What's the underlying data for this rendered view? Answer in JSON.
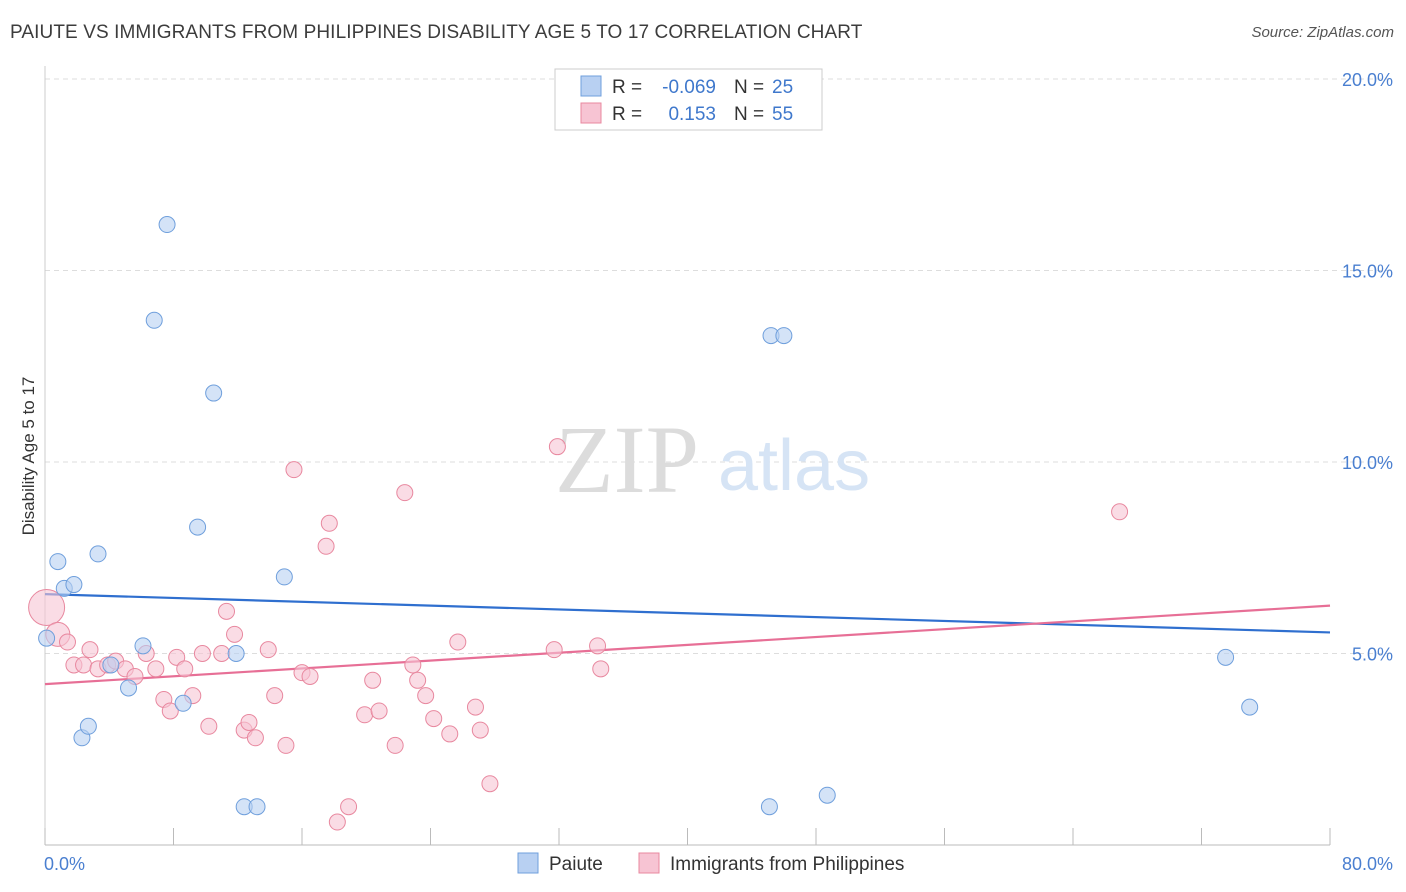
{
  "title": "PAIUTE VS IMMIGRANTS FROM PHILIPPINES DISABILITY AGE 5 TO 17 CORRELATION CHART",
  "source": "Source: ZipAtlas.com",
  "watermark": {
    "zip": "ZIP",
    "atlas": "atlas"
  },
  "legend_box": {
    "rows": [
      {
        "r_label": "R =",
        "r_value": "-0.069",
        "n_label": "N =",
        "n_value": "25"
      },
      {
        "r_label": "R =",
        "r_value": "0.153",
        "n_label": "N =",
        "n_value": "55"
      }
    ]
  },
  "colors": {
    "paiute_fill": "#b8d0f2",
    "paiute_stroke": "#6f9fdc",
    "paiute_line": "#2f6fcf",
    "phil_fill": "#f7c4d3",
    "phil_stroke": "#e8889f",
    "phil_line": "#e76f96",
    "tick": "#4a7fd0",
    "grid": "#dddddd"
  },
  "chart_data": {
    "type": "scatter",
    "title": "PAIUTE VS IMMIGRANTS FROM PHILIPPINES DISABILITY AGE 5 TO 17 CORRELATION CHART",
    "xlabel": "",
    "ylabel": "Disability Age 5 to 17",
    "xlim": [
      0,
      80
    ],
    "ylim": [
      0,
      20
    ],
    "x_tick_labels": [
      "0.0%",
      "80.0%"
    ],
    "y_ticks": [
      5,
      10,
      15,
      20
    ],
    "y_tick_labels": [
      "5.0%",
      "10.0%",
      "15.0%",
      "20.0%"
    ],
    "grid": true,
    "legend_position": "top-center",
    "series": [
      {
        "name": "Paiute",
        "points": [
          [
            0.1,
            5.4
          ],
          [
            0.8,
            7.4
          ],
          [
            1.2,
            6.7
          ],
          [
            1.8,
            6.8
          ],
          [
            3.3,
            7.6
          ],
          [
            2.3,
            2.8
          ],
          [
            2.7,
            3.1
          ],
          [
            4.1,
            4.7
          ],
          [
            5.2,
            4.1
          ],
          [
            6.1,
            5.2
          ],
          [
            6.8,
            13.7
          ],
          [
            7.6,
            16.2
          ],
          [
            8.6,
            3.7
          ],
          [
            9.5,
            8.3
          ],
          [
            10.5,
            11.8
          ],
          [
            11.9,
            5.0
          ],
          [
            12.4,
            1.0
          ],
          [
            13.2,
            1.0
          ],
          [
            14.9,
            7.0
          ],
          [
            45.2,
            13.3
          ],
          [
            46.0,
            13.3
          ],
          [
            45.1,
            1.0
          ],
          [
            48.7,
            1.3
          ],
          [
            73.5,
            4.9
          ],
          [
            75.0,
            3.6
          ]
        ],
        "trend": [
          [
            0,
            6.55
          ],
          [
            80,
            5.55
          ]
        ]
      },
      {
        "name": "Immigrants from Philippines",
        "points": [
          [
            0.1,
            6.2
          ],
          [
            0.8,
            5.5
          ],
          [
            1.4,
            5.3
          ],
          [
            1.8,
            4.7
          ],
          [
            2.4,
            4.7
          ],
          [
            2.8,
            5.1
          ],
          [
            3.3,
            4.6
          ],
          [
            3.9,
            4.7
          ],
          [
            4.4,
            4.8
          ],
          [
            5.0,
            4.6
          ],
          [
            5.6,
            4.4
          ],
          [
            6.3,
            5.0
          ],
          [
            6.9,
            4.6
          ],
          [
            7.4,
            3.8
          ],
          [
            7.8,
            3.5
          ],
          [
            8.2,
            4.9
          ],
          [
            8.7,
            4.6
          ],
          [
            9.2,
            3.9
          ],
          [
            9.8,
            5.0
          ],
          [
            10.2,
            3.1
          ],
          [
            11.3,
            6.1
          ],
          [
            11.8,
            5.5
          ],
          [
            12.4,
            3.0
          ],
          [
            12.7,
            3.2
          ],
          [
            13.1,
            2.8
          ],
          [
            13.9,
            5.1
          ],
          [
            14.3,
            3.9
          ],
          [
            15.0,
            2.6
          ],
          [
            15.5,
            9.8
          ],
          [
            16.0,
            4.5
          ],
          [
            16.5,
            4.4
          ],
          [
            17.5,
            7.8
          ],
          [
            17.7,
            8.4
          ],
          [
            18.2,
            0.6
          ],
          [
            18.9,
            1.0
          ],
          [
            19.9,
            3.4
          ],
          [
            20.4,
            4.3
          ],
          [
            20.8,
            3.5
          ],
          [
            21.8,
            2.6
          ],
          [
            22.4,
            9.2
          ],
          [
            22.9,
            4.7
          ],
          [
            23.2,
            4.3
          ],
          [
            23.7,
            3.9
          ],
          [
            24.2,
            3.3
          ],
          [
            25.2,
            2.9
          ],
          [
            25.7,
            5.3
          ],
          [
            26.8,
            3.6
          ],
          [
            27.1,
            3.0
          ],
          [
            27.7,
            1.6
          ],
          [
            31.7,
            5.1
          ],
          [
            31.9,
            10.4
          ],
          [
            34.4,
            5.2
          ],
          [
            34.6,
            4.6
          ],
          [
            66.9,
            8.7
          ],
          [
            11.0,
            5.0
          ]
        ],
        "trend": [
          [
            0,
            4.2
          ],
          [
            80,
            6.25
          ]
        ]
      }
    ]
  },
  "bottom_legend": [
    {
      "label": "Paiute"
    },
    {
      "label": "Immigrants from Philippines"
    }
  ]
}
